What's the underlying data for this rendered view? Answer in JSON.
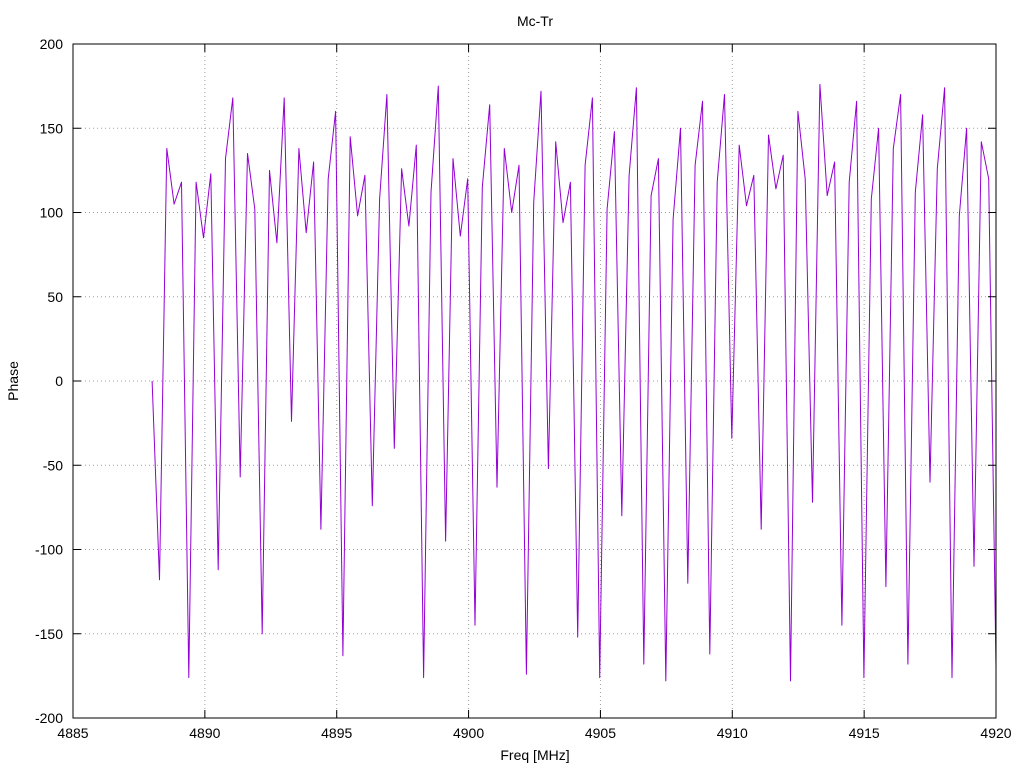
{
  "chart_data": {
    "type": "line",
    "title": "Mc-Tr",
    "xlabel": "Freq [MHz]",
    "ylabel": "Phase",
    "xlim": [
      4885,
      4920
    ],
    "ylim": [
      -200,
      200
    ],
    "x_ticks": [
      "4885",
      "4890",
      "4895",
      "4900",
      "4905",
      "4910",
      "4915",
      "4920"
    ],
    "y_ticks": [
      "200",
      "150",
      "100",
      "50",
      "0",
      "-50",
      "-100",
      "-150",
      "-200"
    ],
    "grid": true,
    "line_color": "#9400d3",
    "series": [
      {
        "x_start": 4888.0,
        "x_end": 4920.0,
        "x_step": 0.025,
        "values": [
          0,
          -118,
          138,
          105,
          118,
          -176,
          118,
          85,
          123,
          -112,
          132,
          168,
          -57,
          135,
          102,
          -150,
          125,
          82,
          168,
          -24,
          138,
          88,
          130,
          -88,
          120,
          160,
          -163,
          145,
          98,
          122,
          -74,
          108,
          170,
          -40,
          126,
          92,
          140,
          -176,
          112,
          175,
          -95,
          132,
          86,
          120,
          -145,
          115,
          164,
          -63,
          138,
          100,
          128,
          -174,
          106,
          172,
          -52,
          142,
          94,
          118,
          -152,
          128,
          168,
          -176,
          102,
          148,
          -80,
          122,
          174,
          -168,
          110,
          132,
          -178,
          96,
          150,
          -120,
          128,
          166,
          -162,
          118,
          170,
          -34,
          140,
          104,
          122,
          -88,
          146,
          114,
          134,
          -178,
          160,
          120,
          -72,
          176,
          110,
          130,
          -145,
          118,
          166,
          -176,
          108,
          150,
          -122,
          138,
          170,
          -168,
          112,
          158,
          -60,
          126,
          174,
          -176,
          98,
          150,
          -110,
          142,
          120,
          -170
        ]
      }
    ]
  }
}
